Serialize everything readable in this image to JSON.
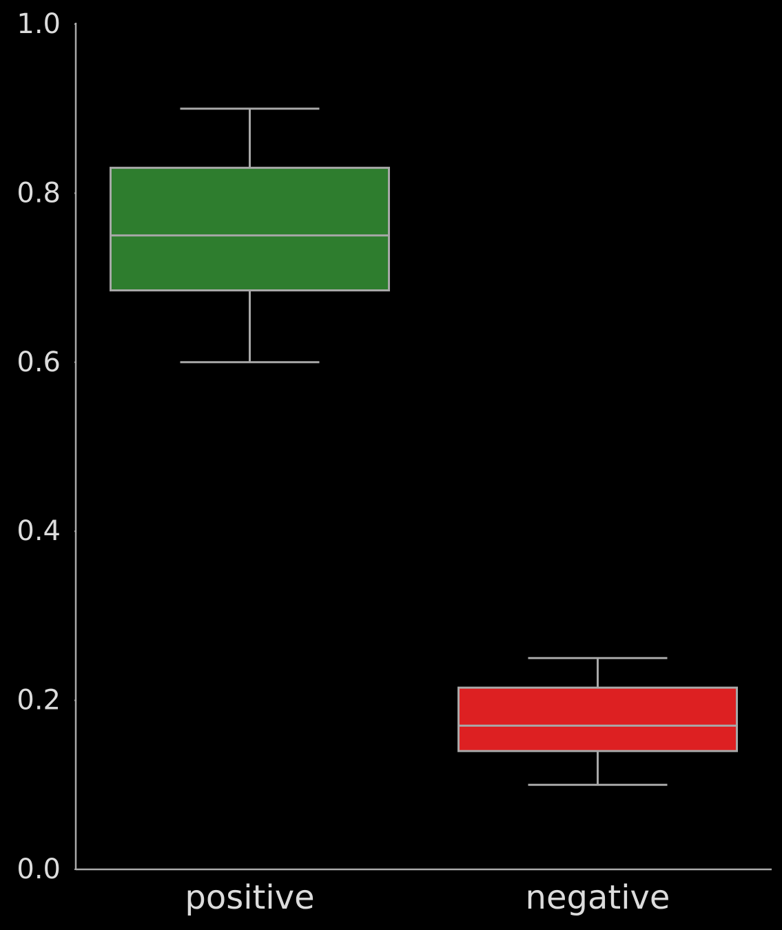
{
  "chart_data": {
    "type": "box",
    "categories": [
      "positive",
      "negative"
    ],
    "boxes": [
      {
        "min": 0.6,
        "q1": 0.685,
        "median": 0.75,
        "q3": 0.83,
        "max": 0.9,
        "color": "#2e7d2e"
      },
      {
        "min": 0.1,
        "q1": 0.14,
        "median": 0.17,
        "q3": 0.215,
        "max": 0.25,
        "color": "#dd2022"
      }
    ],
    "ylim": [
      0,
      1
    ],
    "yticks": [
      {
        "value": 0,
        "label": "0.0"
      },
      0.2,
      0.4,
      0.6,
      0.8,
      {
        "value": 1,
        "label": "1.0"
      }
    ]
  }
}
